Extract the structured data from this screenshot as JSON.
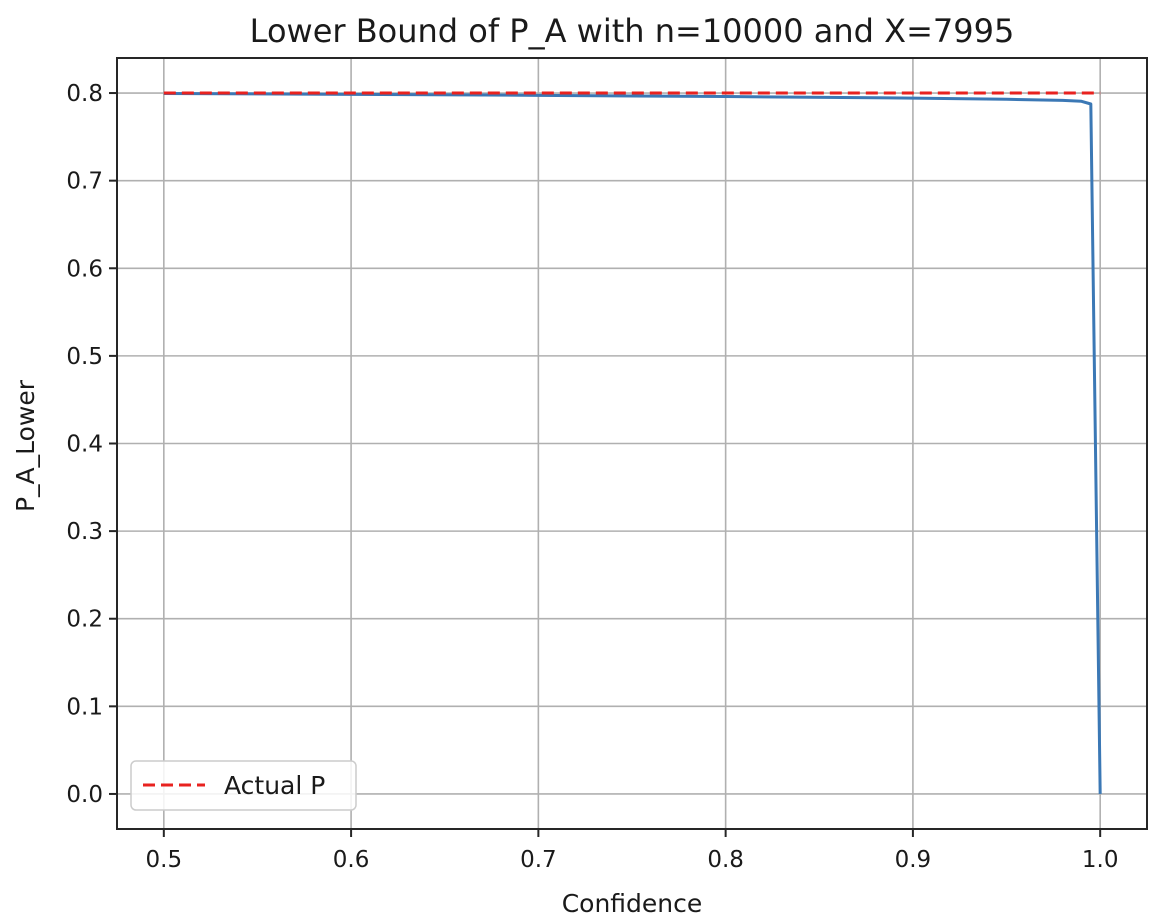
{
  "chart_data": {
    "type": "line",
    "title": "Lower Bound of P_A with n=10000 and X=7995",
    "xlabel": "Confidence",
    "ylabel": "P_A_Lower",
    "xlim": [
      0.475,
      1.025
    ],
    "ylim": [
      -0.04,
      0.84
    ],
    "xticks": [
      0.5,
      0.6,
      0.7,
      0.8,
      0.9,
      1.0
    ],
    "xtick_labels": [
      "0.5",
      "0.6",
      "0.7",
      "0.8",
      "0.9",
      "1.0"
    ],
    "yticks": [
      0.0,
      0.1,
      0.2,
      0.3,
      0.4,
      0.5,
      0.6,
      0.7,
      0.8
    ],
    "ytick_labels": [
      "0.0",
      "0.1",
      "0.2",
      "0.3",
      "0.4",
      "0.5",
      "0.6",
      "0.7",
      "0.8"
    ],
    "grid": true,
    "legend_position": "lower-left",
    "series": [
      {
        "style": "solid",
        "color": "#3b78b5",
        "x": [
          0.5,
          0.6,
          0.7,
          0.8,
          0.9,
          0.95,
          0.98,
          0.99,
          0.995,
          1.0
        ],
        "y": [
          0.7995,
          0.7985,
          0.7974,
          0.796,
          0.7942,
          0.7929,
          0.7916,
          0.7906,
          0.7875,
          0.0
        ]
      },
      {
        "name": "Actual P",
        "style": "dashed",
        "color": "#e8221f",
        "x": [
          0.5,
          1.0
        ],
        "y": [
          0.8,
          0.8
        ]
      }
    ]
  }
}
